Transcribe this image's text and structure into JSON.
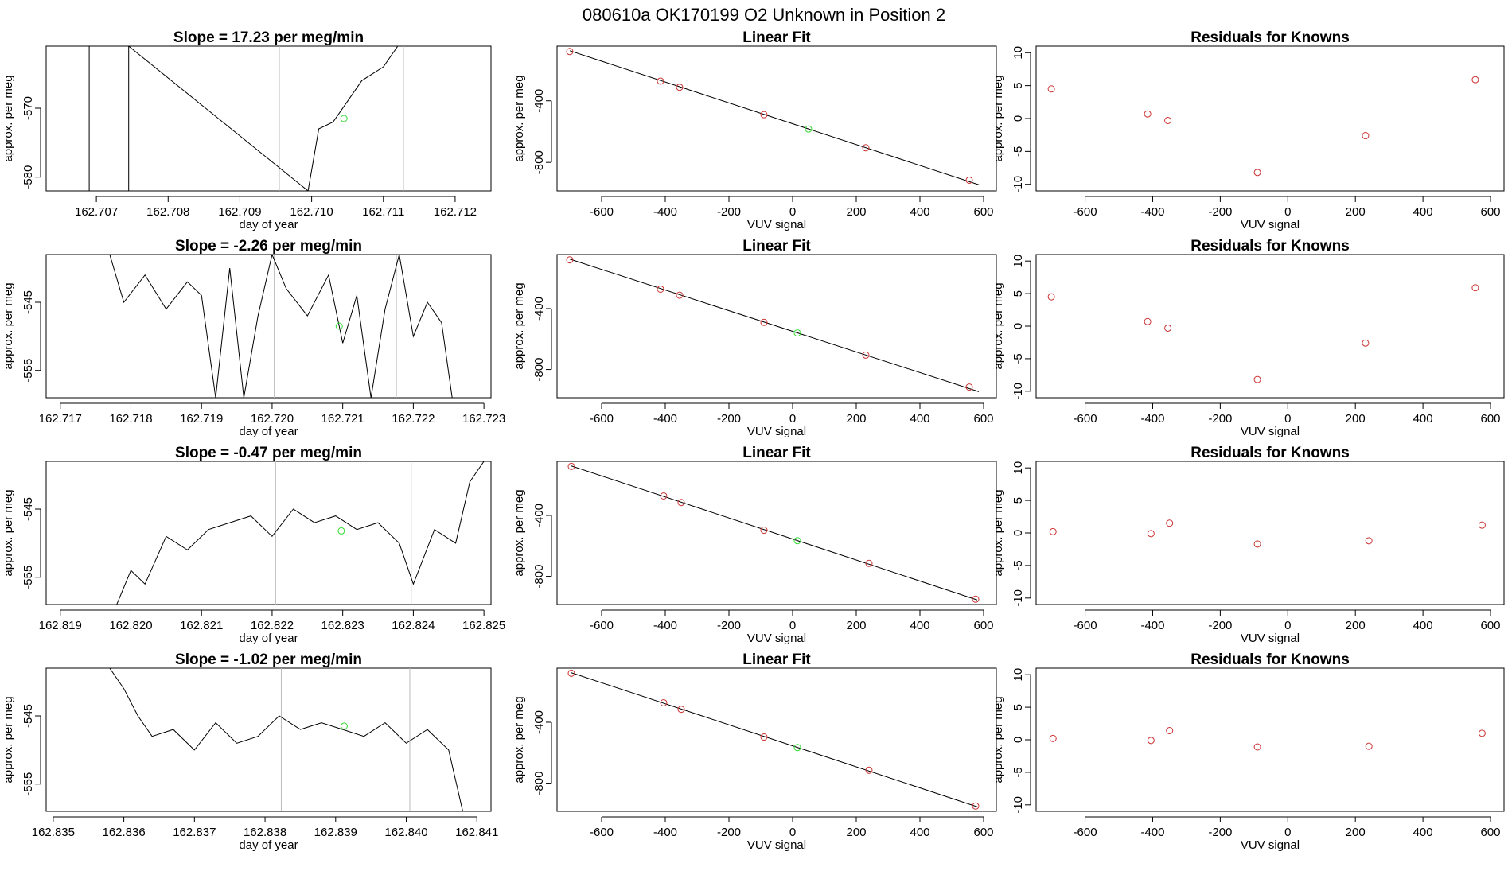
{
  "figure": {
    "suptitle": "080610a      OK170199   O2 Unknown in Position  2"
  },
  "chart_data": [
    {
      "type": "line",
      "row": 1,
      "col": 1,
      "title": "Slope =  17.23  per meg/min",
      "xlabel": "day of year",
      "ylabel": "approx. per meg",
      "xlim": [
        162.7063,
        162.7125
      ],
      "ylim": [
        -582,
        -561
      ],
      "xticks": [
        "162.707",
        "162.708",
        "162.709",
        "162.710",
        "162.711",
        "162.712"
      ],
      "yticks": [
        "-570",
        "-580"
      ],
      "window": [
        162.70955,
        162.71128
      ],
      "green_point": {
        "x": 162.71045,
        "y": -571.5
      },
      "series": [
        {
          "name": "signal",
          "x": [
            162.7069,
            162.7069,
            162.70745,
            162.70745,
            162.70995,
            162.71005,
            162.7101,
            162.7103,
            162.7105,
            162.7107,
            162.711,
            162.7112
          ],
          "y": [
            -561,
            -582,
            -582,
            -561,
            -582,
            -576,
            -573,
            -572,
            -569,
            -566,
            -564,
            -561
          ]
        }
      ]
    },
    {
      "type": "scatter",
      "row": 1,
      "col": 2,
      "title": "Linear Fit",
      "xlabel": "VUV signal",
      "ylabel": "approx. per meg",
      "xlim": [
        -740,
        640
      ],
      "ylim": [
        -985,
        -45
      ],
      "xticks": [
        "-600",
        "-400",
        "-200",
        "0",
        "200",
        "400",
        "600"
      ],
      "yticks": [
        "-400",
        "-800"
      ],
      "fit_line": {
        "x": [
          -700,
          585
        ],
        "y": [
          -75,
          -945
        ]
      },
      "knowns": {
        "x": [
          -700,
          -415,
          -355,
          -90,
          230,
          555
        ],
        "y": [
          -80,
          -272,
          -312,
          -490,
          -705,
          -915
        ]
      },
      "unknown": {
        "x": 50,
        "y": -583
      }
    },
    {
      "type": "scatter",
      "row": 1,
      "col": 3,
      "title": "Residuals for Knowns",
      "xlabel": "VUV signal",
      "ylabel": "approx. per meg",
      "xlim": [
        -745,
        640
      ],
      "ylim": [
        -11,
        11
      ],
      "xticks": [
        "-600",
        "-400",
        "-200",
        "0",
        "200",
        "400",
        "600"
      ],
      "yticks": [
        "10",
        "5",
        "0",
        "-5",
        "-10"
      ],
      "residuals": {
        "x": [
          -700,
          -415,
          -355,
          -90,
          230,
          555
        ],
        "y": [
          4.5,
          0.7,
          -0.3,
          -8.2,
          -2.6,
          5.9
        ]
      }
    },
    {
      "type": "line",
      "row": 2,
      "col": 1,
      "title": "Slope =  -2.26  per meg/min",
      "xlabel": "day of year",
      "ylabel": "approx. per meg",
      "xlim": [
        162.7168,
        162.7231
      ],
      "ylim": [
        -559,
        -538
      ],
      "xticks": [
        "162.717",
        "162.718",
        "162.719",
        "162.720",
        "162.721",
        "162.722",
        "162.723"
      ],
      "yticks": [
        "-545",
        "-555"
      ],
      "window": [
        162.72003,
        162.72176
      ],
      "green_point": {
        "x": 162.72095,
        "y": -548.5
      },
      "series": [
        {
          "name": "signal",
          "x": [
            162.7177,
            162.7179,
            162.7182,
            162.7185,
            162.7188,
            162.719,
            162.7192,
            162.7194,
            162.7196,
            162.7198,
            162.72,
            162.7202,
            162.7205,
            162.7208,
            162.721,
            162.7212,
            162.7214,
            162.7216,
            162.7218,
            162.722,
            162.7222,
            162.7224,
            162.72255
          ],
          "y": [
            -538,
            -545,
            -541,
            -546,
            -542,
            -544,
            -559,
            -540,
            -559,
            -547,
            -538,
            -543,
            -547,
            -541,
            -551,
            -544,
            -559,
            -546,
            -538,
            -550,
            -545,
            -548,
            -559
          ]
        }
      ]
    },
    {
      "type": "scatter",
      "row": 2,
      "col": 2,
      "title": "Linear Fit",
      "xlabel": "VUV signal",
      "ylabel": "approx. per meg",
      "xlim": [
        -740,
        640
      ],
      "ylim": [
        -985,
        -45
      ],
      "xticks": [
        "-600",
        "-400",
        "-200",
        "0",
        "200",
        "400",
        "600"
      ],
      "yticks": [
        "-400",
        "-800"
      ],
      "fit_line": {
        "x": [
          -700,
          585
        ],
        "y": [
          -75,
          -945
        ]
      },
      "knowns": {
        "x": [
          -700,
          -415,
          -355,
          -90,
          230,
          555
        ],
        "y": [
          -80,
          -272,
          -312,
          -490,
          -705,
          -915
        ]
      },
      "unknown": {
        "x": 15,
        "y": -560
      }
    },
    {
      "type": "scatter",
      "row": 2,
      "col": 3,
      "title": "Residuals for Knowns",
      "xlabel": "VUV signal",
      "ylabel": "approx. per meg",
      "xlim": [
        -745,
        640
      ],
      "ylim": [
        -11,
        11
      ],
      "xticks": [
        "-600",
        "-400",
        "-200",
        "0",
        "200",
        "400",
        "600"
      ],
      "yticks": [
        "10",
        "5",
        "0",
        "-5",
        "-10"
      ],
      "residuals": {
        "x": [
          -700,
          -415,
          -355,
          -90,
          230,
          555
        ],
        "y": [
          4.5,
          0.7,
          -0.3,
          -8.2,
          -2.6,
          5.9
        ]
      }
    },
    {
      "type": "line",
      "row": 3,
      "col": 1,
      "title": "Slope =  -0.47  per meg/min",
      "xlabel": "day of year",
      "ylabel": "approx. per meg",
      "xlim": [
        162.8188,
        162.8251
      ],
      "ylim": [
        -559,
        -538
      ],
      "xticks": [
        "162.819",
        "162.820",
        "162.821",
        "162.822",
        "162.823",
        "162.824",
        "162.825"
      ],
      "yticks": [
        "-545",
        "-555"
      ],
      "window": [
        162.82205,
        162.82397
      ],
      "green_point": {
        "x": 162.82298,
        "y": -548.2
      },
      "series": [
        {
          "name": "signal",
          "x": [
            162.8198,
            162.82,
            162.8202,
            162.8205,
            162.8208,
            162.8211,
            162.8214,
            162.8217,
            162.822,
            162.8223,
            162.8226,
            162.8229,
            162.8232,
            162.8235,
            162.8238,
            162.824,
            162.8243,
            162.8246,
            162.8248,
            162.825
          ],
          "y": [
            -559,
            -554,
            -556,
            -549,
            -551,
            -548,
            -547,
            -546,
            -549,
            -545,
            -547,
            -546,
            -548,
            -547,
            -550,
            -556,
            -548,
            -550,
            -541,
            -538
          ]
        }
      ]
    },
    {
      "type": "scatter",
      "row": 3,
      "col": 2,
      "title": "Linear Fit",
      "xlabel": "VUV signal",
      "ylabel": "approx. per meg",
      "xlim": [
        -740,
        640
      ],
      "ylim": [
        -985,
        -45
      ],
      "xticks": [
        "-600",
        "-400",
        "-200",
        "0",
        "200",
        "400",
        "600"
      ],
      "yticks": [
        "-400",
        "-800"
      ],
      "fit_line": {
        "x": [
          -695,
          580
        ],
        "y": [
          -75,
          -955
        ]
      },
      "knowns": {
        "x": [
          -695,
          -405,
          -350,
          -90,
          240,
          575
        ],
        "y": [
          -78,
          -272,
          -315,
          -497,
          -715,
          -950
        ]
      },
      "unknown": {
        "x": 15,
        "y": -566
      }
    },
    {
      "type": "scatter",
      "row": 3,
      "col": 3,
      "title": "Residuals for Knowns",
      "xlabel": "VUV signal",
      "ylabel": "approx. per meg",
      "xlim": [
        -745,
        640
      ],
      "ylim": [
        -11,
        11
      ],
      "xticks": [
        "-600",
        "-400",
        "-200",
        "0",
        "200",
        "400",
        "600"
      ],
      "yticks": [
        "10",
        "5",
        "0",
        "-5",
        "-10"
      ],
      "residuals": {
        "x": [
          -695,
          -405,
          -350,
          -90,
          240,
          575
        ],
        "y": [
          0.2,
          -0.1,
          1.5,
          -1.7,
          -1.2,
          1.2
        ]
      }
    },
    {
      "type": "line",
      "row": 4,
      "col": 1,
      "title": "Slope =  -1.02  per meg/min",
      "xlabel": "day of year",
      "ylabel": "approx. per meg",
      "xlim": [
        162.8349,
        162.8412
      ],
      "ylim": [
        -559,
        -538
      ],
      "xticks": [
        "162.835",
        "162.836",
        "162.837",
        "162.838",
        "162.839",
        "162.840",
        "162.841"
      ],
      "yticks": [
        "-545",
        "-555"
      ],
      "window": [
        162.83823,
        162.84005
      ],
      "green_point": {
        "x": 162.83912,
        "y": -546.5
      },
      "series": [
        {
          "name": "signal",
          "x": [
            162.8358,
            162.836,
            162.8362,
            162.8364,
            162.8367,
            162.837,
            162.8373,
            162.8376,
            162.8379,
            162.8382,
            162.8385,
            162.8388,
            162.8391,
            162.8394,
            162.8397,
            162.84,
            162.8403,
            162.8406,
            162.8408
          ],
          "y": [
            -538,
            -541,
            -545,
            -548,
            -547,
            -550,
            -546,
            -549,
            -548,
            -545,
            -547,
            -546,
            -547,
            -548,
            -546,
            -549,
            -547,
            -550,
            -559
          ]
        }
      ]
    },
    {
      "type": "scatter",
      "row": 4,
      "col": 2,
      "title": "Linear Fit",
      "xlabel": "VUV signal",
      "ylabel": "approx. per meg",
      "xlim": [
        -740,
        640
      ],
      "ylim": [
        -985,
        -45
      ],
      "xticks": [
        "-600",
        "-400",
        "-200",
        "0",
        "200",
        "400",
        "600"
      ],
      "yticks": [
        "-400",
        "-800"
      ],
      "fit_line": {
        "x": [
          -695,
          580
        ],
        "y": [
          -75,
          -955
        ]
      },
      "knowns": {
        "x": [
          -695,
          -405,
          -350,
          -90,
          240,
          575
        ],
        "y": [
          -78,
          -272,
          -315,
          -497,
          -715,
          -950
        ]
      },
      "unknown": {
        "x": 15,
        "y": -566
      }
    },
    {
      "type": "scatter",
      "row": 4,
      "col": 3,
      "title": "Residuals for Knowns",
      "xlabel": "VUV signal",
      "ylabel": "approx. per meg",
      "xlim": [
        -745,
        640
      ],
      "ylim": [
        -11,
        11
      ],
      "xticks": [
        "-600",
        "-400",
        "-200",
        "0",
        "200",
        "400",
        "600"
      ],
      "yticks": [
        "10",
        "5",
        "0",
        "-5",
        "-10"
      ],
      "residuals": {
        "x": [
          -695,
          -405,
          -350,
          -90,
          240,
          575
        ],
        "y": [
          0.2,
          -0.1,
          1.4,
          -1.1,
          -1.0,
          1.0
        ]
      }
    }
  ]
}
